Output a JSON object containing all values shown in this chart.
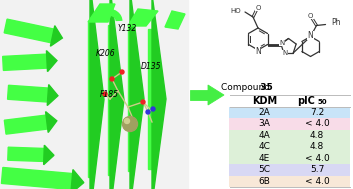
{
  "arrow_color": "#44ee44",
  "arrow_border_color": "#22aa22",
  "compound_label": "Compound ",
  "compound_number": "35",
  "table_rows": [
    {
      "kdm": "2A",
      "pic50": "7.2",
      "bg": "#c8e4f8"
    },
    {
      "kdm": "3A",
      "pic50": "< 4.0",
      "bg": "#f8dce8"
    },
    {
      "kdm": "4A",
      "pic50": "4.8",
      "bg": "#ddf0d8"
    },
    {
      "kdm": "4C",
      "pic50": "4.8",
      "bg": "#ddf0d8"
    },
    {
      "kdm": "4E",
      "pic50": "< 4.0",
      "bg": "#ddf0d8"
    },
    {
      "kdm": "5C",
      "pic50": "5.7",
      "bg": "#d8d8f4"
    },
    {
      "kdm": "6B",
      "pic50": "< 4.0",
      "bg": "#f8e8d8"
    }
  ],
  "bg_color": "#ffffff",
  "table_line_color": "#bbbbbb",
  "protein_bg": "#f8f8f8",
  "green_light": "#44ff44",
  "green_dark": "#22cc22"
}
